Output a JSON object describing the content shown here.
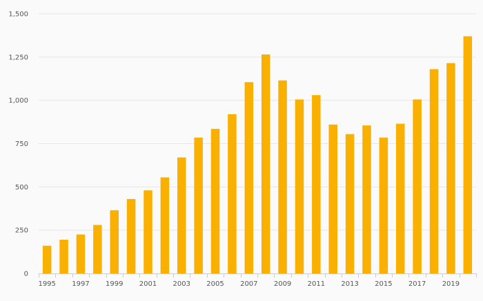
{
  "chart_data": {
    "type": "bar",
    "title": "",
    "xlabel": "",
    "ylabel": "",
    "categories": [
      "1995",
      "1996",
      "1997",
      "1998",
      "1999",
      "2000",
      "2001",
      "2002",
      "2003",
      "2004",
      "2005",
      "2006",
      "2007",
      "2008",
      "2009",
      "2010",
      "2011",
      "2012",
      "2013",
      "2014",
      "2015",
      "2016",
      "2017",
      "2018",
      "2019",
      "2020"
    ],
    "x_tick_labels": [
      "1995",
      "1997",
      "1999",
      "2001",
      "2003",
      "2005",
      "2007",
      "2009",
      "2011",
      "2013",
      "2015",
      "2017",
      "2019"
    ],
    "values": [
      160,
      195,
      225,
      280,
      365,
      430,
      480,
      555,
      670,
      785,
      835,
      920,
      1105,
      1265,
      1115,
      1005,
      1030,
      860,
      805,
      855,
      785,
      865,
      1005,
      1180,
      1215,
      1370
    ],
    "y_ticks": [
      0,
      250,
      500,
      750,
      1000,
      1250,
      1500
    ],
    "y_tick_labels": [
      "0",
      "250",
      "500",
      "750",
      "1,000",
      "1,250",
      "1,500"
    ],
    "ylim": [
      0,
      1500
    ],
    "grid": true,
    "legend": "none",
    "bar_color": "#f9b000",
    "grid_color": "#e6e6e6",
    "axis_color": "#cccccc",
    "text_color": "#555555"
  }
}
